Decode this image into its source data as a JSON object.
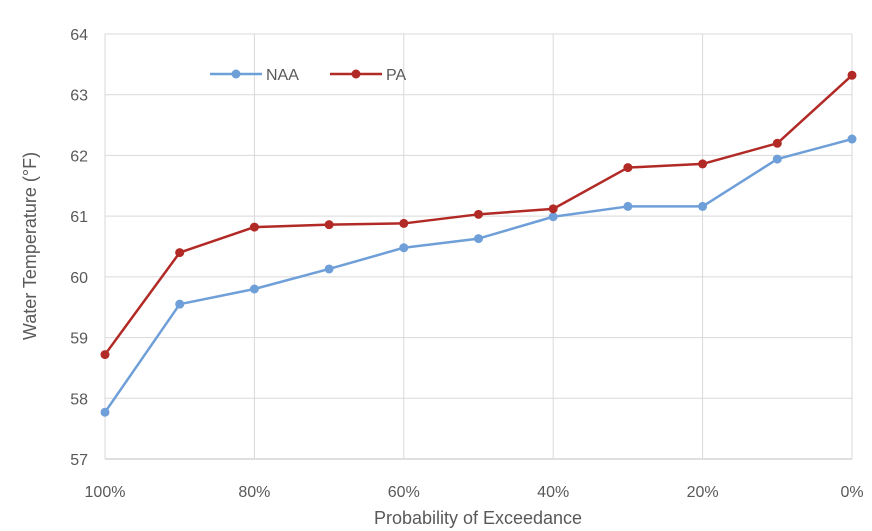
{
  "chart_data": {
    "type": "line",
    "xlabel": "Probability of Exceedance",
    "ylabel": "Water Temperature (°F)",
    "x": [
      100,
      90,
      80,
      70,
      60,
      50,
      40,
      30,
      20,
      10,
      0
    ],
    "xticks": [
      100,
      80,
      60,
      40,
      20,
      0
    ],
    "xtick_labels": [
      "100%",
      "80%",
      "60%",
      "40%",
      "20%",
      "0%"
    ],
    "xlim": [
      100,
      0
    ],
    "ylim": [
      57,
      64
    ],
    "yticks": [
      57,
      58,
      59,
      60,
      61,
      62,
      63,
      64
    ],
    "ytick_labels": [
      "57",
      "58",
      "59",
      "60",
      "61",
      "62",
      "63",
      "64"
    ],
    "grid": true,
    "legend_position": "top-left",
    "series": [
      {
        "name": "NAA",
        "color": "#6f9fd8",
        "values": [
          57.77,
          59.55,
          59.8,
          60.13,
          60.48,
          60.63,
          60.99,
          61.16,
          61.16,
          61.94,
          62.27
        ]
      },
      {
        "name": "PA",
        "color": "#b22a26",
        "values": [
          58.72,
          60.4,
          60.82,
          60.86,
          60.88,
          61.03,
          61.12,
          61.8,
          61.86,
          62.2,
          63.32
        ]
      }
    ]
  }
}
